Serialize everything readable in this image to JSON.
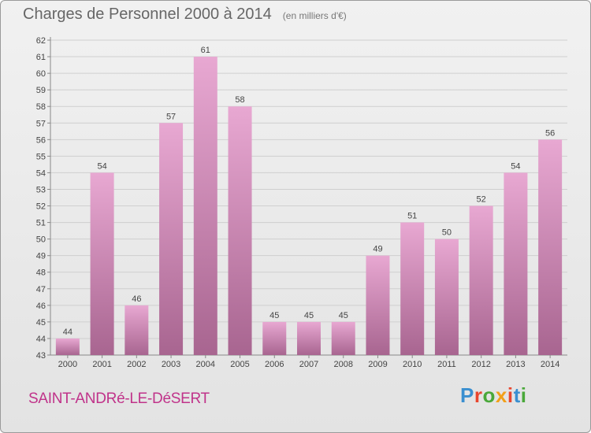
{
  "title": "Charges de Personnel 2000 à 2014",
  "unit_label": "(en milliers d'€)",
  "commune": "SAINT-ANDRé-LE-DéSERT",
  "brand": {
    "text": "Proxiti",
    "letter_colors": [
      "#3a8fd0",
      "#e8462e",
      "#4aa83a",
      "#f2a019",
      "#e8462e",
      "#3a8fd0",
      "#4aa83a"
    ]
  },
  "colors": {
    "bar_top": "#e8a8d2",
    "bar_bottom": "#a86590",
    "commune": "#c0338a"
  },
  "chart_data": {
    "type": "bar",
    "categories": [
      "2000",
      "2001",
      "2002",
      "2003",
      "2004",
      "2005",
      "2006",
      "2007",
      "2008",
      "2009",
      "2010",
      "2011",
      "2012",
      "2013",
      "2014"
    ],
    "values": [
      44,
      54,
      46,
      57,
      61,
      58,
      45,
      45,
      45,
      49,
      51,
      50,
      52,
      54,
      56
    ],
    "data_labels": [
      "44",
      "54",
      "46",
      "57",
      "61",
      "58",
      "45",
      "45",
      "45",
      "49",
      "51",
      "50",
      "52",
      "54",
      "56"
    ],
    "yticks": [
      "43",
      "44",
      "45",
      "46",
      "47",
      "48",
      "49",
      "50",
      "51",
      "52",
      "53",
      "54",
      "55",
      "56",
      "57",
      "58",
      "59",
      "60",
      "61",
      "62"
    ],
    "ylim": [
      43,
      62
    ],
    "grid": true,
    "xlabel": "",
    "ylabel": ""
  }
}
